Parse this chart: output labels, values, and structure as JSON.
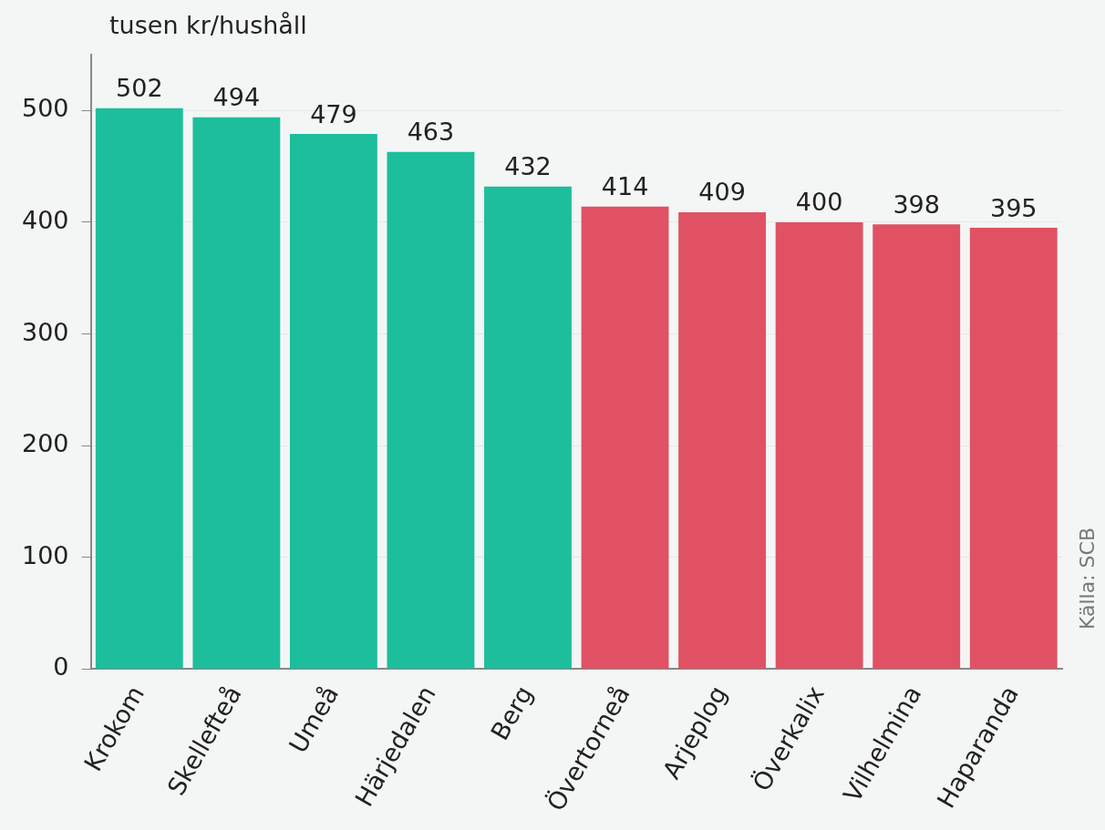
{
  "chart_data": {
    "type": "bar",
    "ylabel": "tusen kr/hushåll",
    "categories": [
      "Krokom",
      "Skellefteå",
      "Umeå",
      "Härjedalen",
      "Berg",
      "Övertorneå",
      "Arjeplog",
      "Överkalix",
      "Vilhelmina",
      "Haparanda"
    ],
    "values": [
      502,
      494,
      479,
      463,
      432,
      414,
      409,
      400,
      398,
      395
    ],
    "colors": [
      "#1dbe9c",
      "#1dbe9c",
      "#1dbe9c",
      "#1dbe9c",
      "#1dbe9c",
      "#e05263",
      "#e05263",
      "#e05263",
      "#e05263",
      "#e05263"
    ],
    "ylim": [
      0,
      550
    ],
    "yticks": [
      0,
      100,
      200,
      300,
      400,
      500
    ],
    "grid": "y",
    "data_labels": true,
    "legend": false,
    "annotations": [
      "Källa: SCB"
    ]
  }
}
